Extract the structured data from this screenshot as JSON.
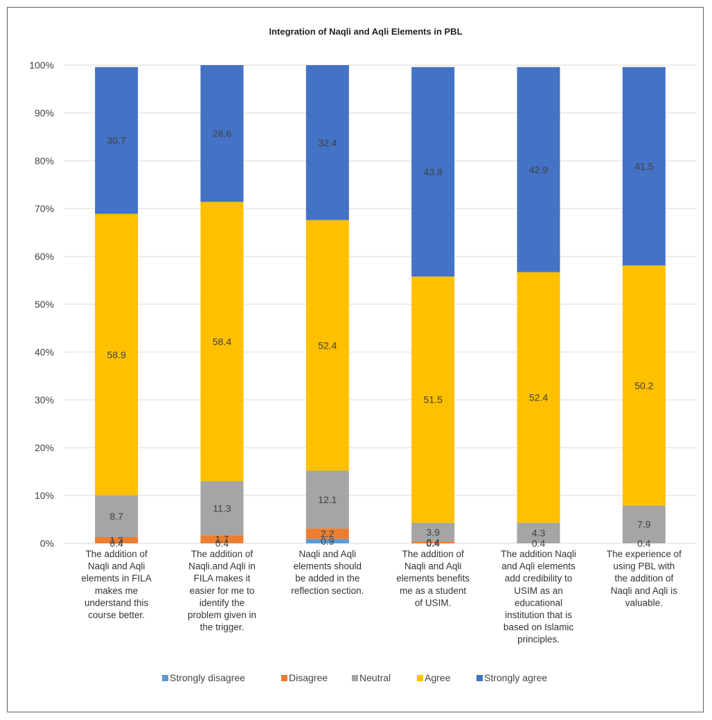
{
  "chart_data": {
    "type": "bar",
    "stacked": "percent",
    "title": "Integration of Naqli and Aqli Elements in PBL",
    "xlabel": "",
    "ylabel": "",
    "ylim": [
      0,
      100
    ],
    "y_ticks": [
      "0%",
      "10%",
      "20%",
      "30%",
      "40%",
      "50%",
      "60%",
      "70%",
      "80%",
      "90%",
      "100%"
    ],
    "grid": true,
    "legend_position": "bottom",
    "categories": [
      "The addition of Naqli and Aqli elements in FILA makes me understand this course better.",
      "The addition of Naqli.and Aqli in FILA makes it easier for me to identify the problem given in the trigger.",
      "Naqli and Aqli elements should be added in the reflection section.",
      "The addition of Naqli and Aqli elements benefits me as a student of USIM.",
      "The addition Naqli and Aqli elements add credibility to USIM as an educational institution that is based on Islamic principles.",
      "The experience of using PBL with the addition of Naqli and Aqli is valuable."
    ],
    "category_lines": [
      [
        "The addition of",
        "Naqli and Aqli",
        "elements in FILA",
        "makes me",
        "understand this",
        "course better."
      ],
      [
        "The addition of",
        "Naqli.and Aqli in",
        "FILA makes it",
        "easier for me to",
        "identify the",
        "problem given in",
        "the trigger."
      ],
      [
        "Naqli and Aqli",
        "elements should",
        "be added in the",
        "reflection section."
      ],
      [
        "The addition of",
        "Naqli and Aqli",
        "elements benefits",
        "me as a student",
        "of USIM."
      ],
      [
        "The addition Naqli",
        "and Aqli elements",
        "add credibility to",
        "USIM as an",
        "educational",
        "institution that is",
        "based on Islamic",
        "principles."
      ],
      [
        "The experience of",
        "using PBL with",
        "the addition of",
        "Naqli and Aqli is",
        "valuable."
      ]
    ],
    "series": [
      {
        "name": "Strongly disagree",
        "color": "#5b9bd5",
        "values": [
          0,
          0,
          0.9,
          0,
          0,
          0
        ],
        "labels": [
          "",
          "",
          "0.9",
          "",
          "",
          ""
        ]
      },
      {
        "name": "Disagree",
        "color": "#ed7d31",
        "values": [
          1.3,
          1.7,
          2.2,
          0.4,
          0,
          0
        ],
        "labels": [
          "1.3",
          "1.7",
          "2.2",
          "0.4",
          "",
          ""
        ]
      },
      {
        "name": "Neutral",
        "color": "#a5a5a5",
        "values": [
          8.7,
          11.3,
          12.1,
          3.9,
          4.3,
          7.9
        ],
        "labels": [
          "8.7",
          "11.3",
          "12.1",
          "3.9",
          "4.3",
          "7.9"
        ]
      },
      {
        "name": "Agree",
        "color": "#ffc000",
        "values": [
          58.9,
          58.4,
          52.4,
          51.5,
          52.4,
          50.2
        ],
        "labels": [
          "58.9",
          "58.4",
          "52.4",
          "51.5",
          "52.4",
          "50.2"
        ]
      },
      {
        "name": "Strongly agree",
        "color": "#4472c4",
        "values": [
          30.7,
          28.6,
          32.4,
          43.8,
          42.9,
          41.5
        ],
        "labels": [
          "30.7",
          "28.6",
          "32.4",
          "43.8",
          "42.9",
          "41.5"
        ]
      }
    ],
    "extra_zero_labels": [
      "0.4",
      "0.4",
      "",
      "0.4",
      "0.4",
      "0.4"
    ]
  }
}
